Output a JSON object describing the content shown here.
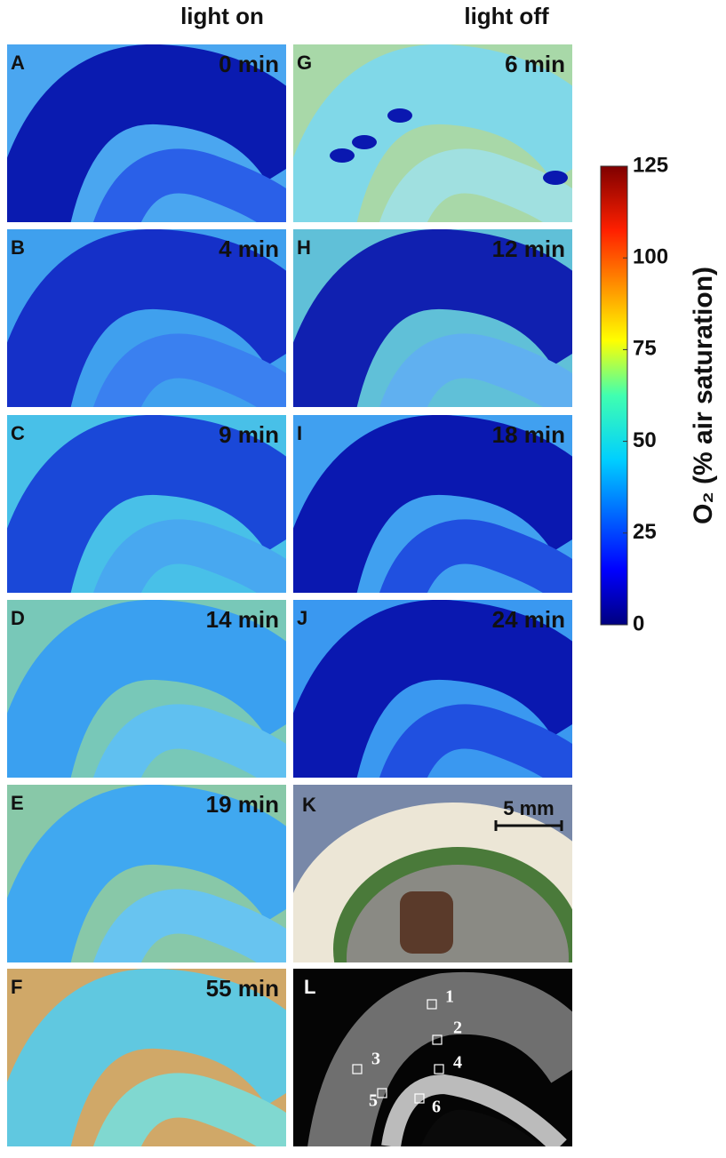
{
  "header": {
    "left": "light on",
    "right": "light off"
  },
  "panels": [
    {
      "letter": "A",
      "time": "0 min"
    },
    {
      "letter": "B",
      "time": "4 min"
    },
    {
      "letter": "C",
      "time": "9 min"
    },
    {
      "letter": "D",
      "time": "14 min"
    },
    {
      "letter": "E",
      "time": "19 min"
    },
    {
      "letter": "F",
      "time": "55 min"
    },
    {
      "letter": "G",
      "time": "6 min"
    },
    {
      "letter": "H",
      "time": "12 min"
    },
    {
      "letter": "I",
      "time": "18 min"
    },
    {
      "letter": "J",
      "time": "24 min"
    }
  ],
  "photo": {
    "letter": "K",
    "scale_bar": "5 mm"
  },
  "roi_panel": {
    "letter": "L",
    "rois": [
      "1",
      "2",
      "3",
      "4",
      "5",
      "6"
    ]
  },
  "colorbar": {
    "label": "O₂ (% air saturation)",
    "range": [
      0,
      125
    ],
    "ticks": [
      0,
      25,
      50,
      75,
      100,
      125
    ]
  }
}
